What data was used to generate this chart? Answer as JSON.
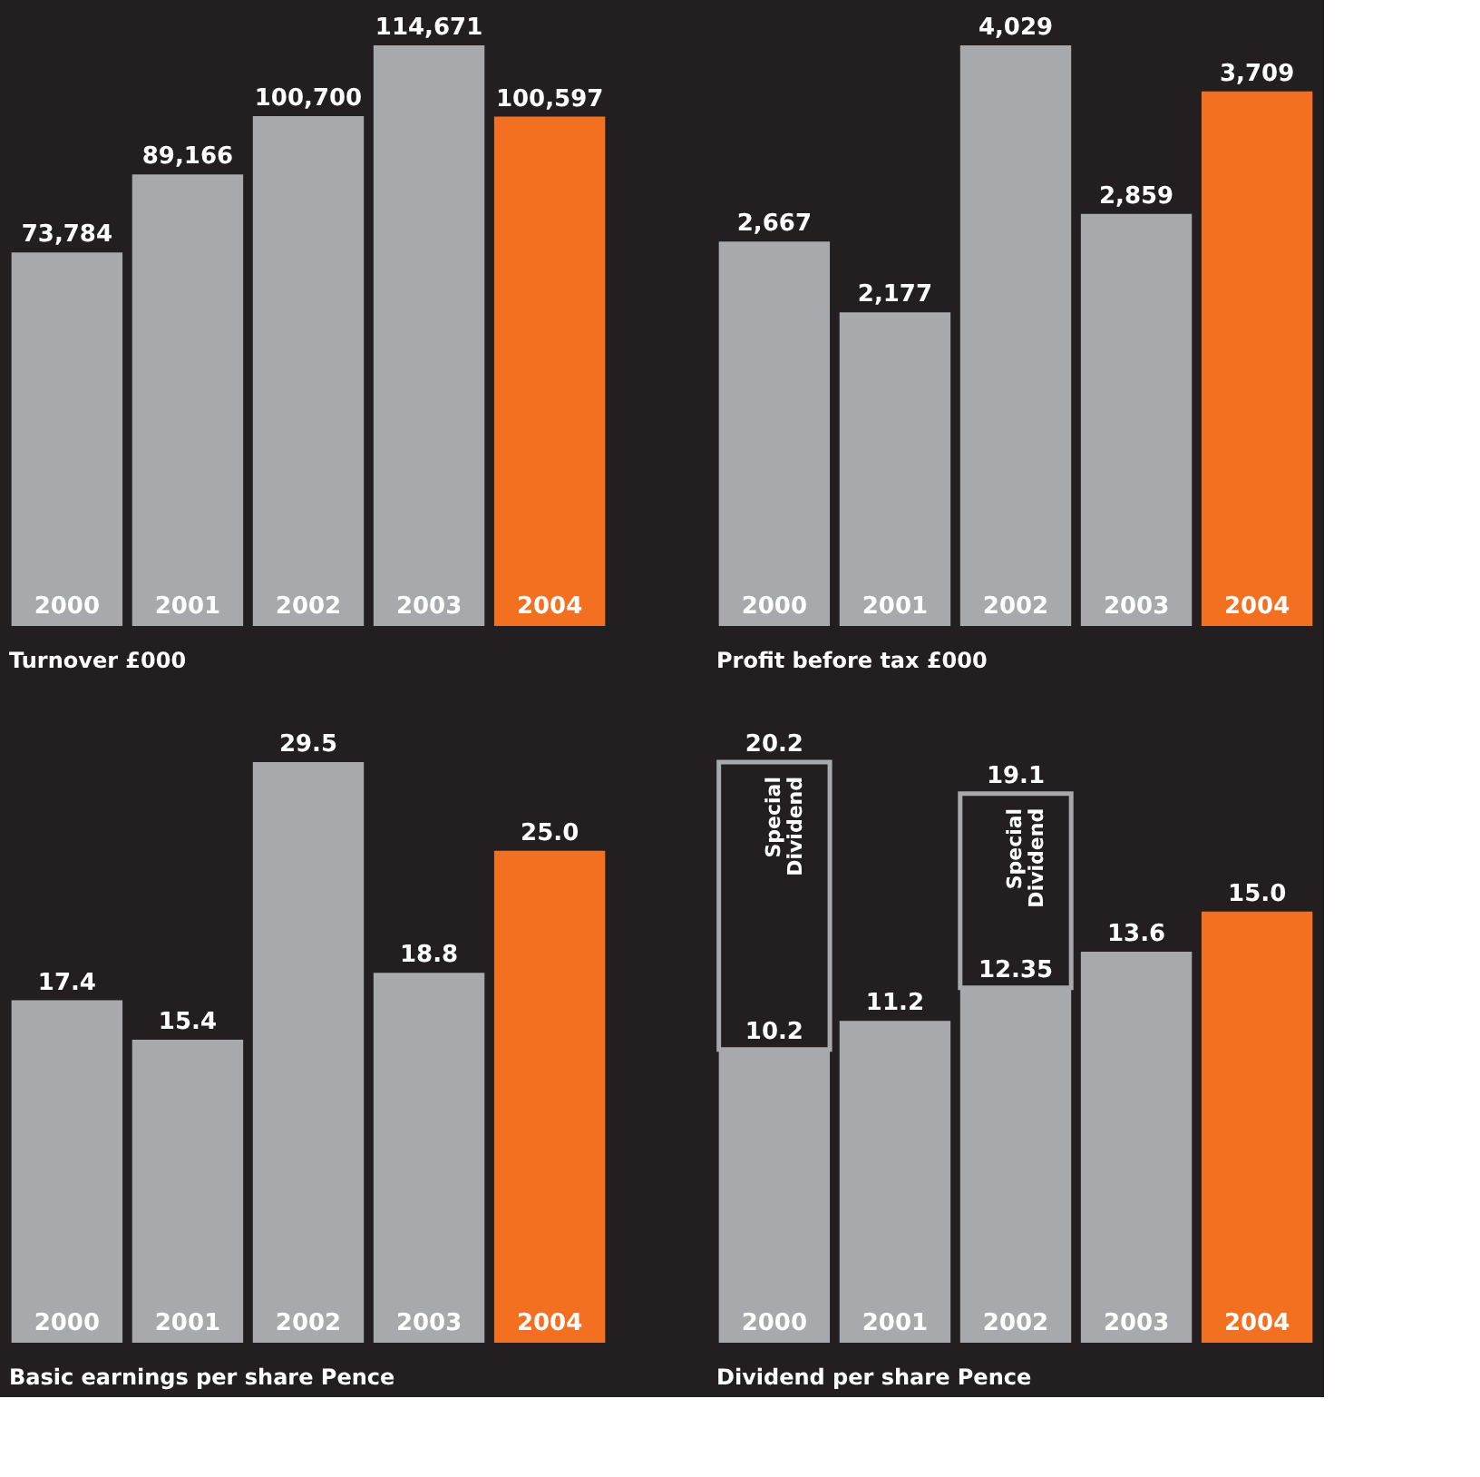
{
  "chart_data": [
    {
      "type": "bar",
      "xlabel": "Turnover £000",
      "categories": [
        "2000",
        "2001",
        "2002",
        "2003",
        "2004"
      ],
      "series": [
        {
          "colors": [
            "#a7a9ac",
            "#a7a9ac",
            "#a7a9ac",
            "#a7a9ac",
            "#f37021"
          ],
          "values": [
            73784,
            89166,
            100700,
            114671,
            100597
          ],
          "value_labels": [
            "73,784",
            "89,166",
            "100,700",
            "114,671",
            "100,597"
          ]
        }
      ]
    },
    {
      "type": "bar",
      "xlabel": "Profit before tax £000",
      "categories": [
        "2000",
        "2001",
        "2002",
        "2003",
        "2004"
      ],
      "series": [
        {
          "colors": [
            "#a7a9ac",
            "#a7a9ac",
            "#a7a9ac",
            "#a7a9ac",
            "#f37021"
          ],
          "values": [
            2667,
            2177,
            4029,
            2859,
            3709
          ],
          "value_labels": [
            "2,667",
            "2,177",
            "4,029",
            "2,859",
            "3,709"
          ]
        }
      ]
    },
    {
      "type": "bar",
      "xlabel": "Basic earnings per share Pence",
      "categories": [
        "2000",
        "2001",
        "2002",
        "2003",
        "2004"
      ],
      "series": [
        {
          "colors": [
            "#a7a9ac",
            "#a7a9ac",
            "#a7a9ac",
            "#a7a9ac",
            "#f37021"
          ],
          "values": [
            17.4,
            15.4,
            29.5,
            18.8,
            25.0
          ],
          "value_labels": [
            "17.4",
            "15.4",
            "29.5",
            "18.8",
            "25.0"
          ]
        }
      ]
    },
    {
      "type": "bar",
      "xlabel": "Dividend per share Pence",
      "categories": [
        "2000",
        "2001",
        "2002",
        "2003",
        "2004"
      ],
      "stacked": true,
      "totals": [
        "20.2",
        "11.2",
        "19.1",
        "13.6",
        "15.0"
      ],
      "series": [
        {
          "colors": [
            "#a7a9ac",
            "#a7a9ac",
            "#a7a9ac",
            "#a7a9ac",
            "#f37021"
          ],
          "values": [
            10.2,
            11.2,
            12.35,
            13.6,
            15.0
          ],
          "value_labels": [
            "10.2",
            null,
            "12.35",
            null,
            null
          ]
        },
        {
          "name": "Special Dividend",
          "color": "#a7a9ac",
          "values": [
            10.0,
            null,
            6.75,
            null,
            null
          ]
        }
      ]
    }
  ]
}
